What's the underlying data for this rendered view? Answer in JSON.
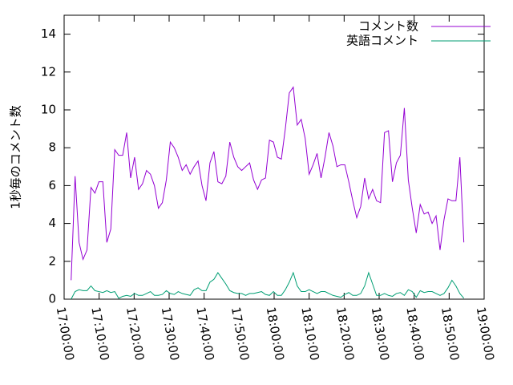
{
  "chart_data": {
    "type": "line",
    "y_label": "1秒毎のコメント数",
    "x": [
      "17:02:00",
      "17:03:08",
      "17:04:16",
      "17:05:24",
      "17:06:32",
      "17:07:40",
      "17:08:48",
      "17:09:56",
      "17:11:04",
      "17:12:12",
      "17:13:20",
      "17:14:28",
      "17:15:36",
      "17:16:44",
      "17:17:52",
      "17:19:00",
      "17:20:08",
      "17:21:16",
      "17:22:24",
      "17:23:32",
      "17:24:40",
      "17:25:48",
      "17:26:56",
      "17:28:04",
      "17:29:12",
      "17:30:20",
      "17:31:28",
      "17:32:36",
      "17:33:44",
      "17:34:52",
      "17:36:00",
      "17:37:08",
      "17:38:16",
      "17:39:24",
      "17:40:32",
      "17:41:40",
      "17:42:48",
      "17:43:56",
      "17:45:04",
      "17:46:12",
      "17:47:20",
      "17:48:28",
      "17:49:36",
      "17:50:44",
      "17:51:52",
      "17:53:00",
      "17:54:08",
      "17:55:16",
      "17:56:24",
      "17:57:32",
      "17:58:40",
      "17:59:48",
      "18:00:56",
      "18:02:04",
      "18:03:12",
      "18:04:20",
      "18:05:28",
      "18:06:36",
      "18:07:44",
      "18:08:52",
      "18:10:00",
      "18:11:08",
      "18:12:16",
      "18:13:24",
      "18:14:32",
      "18:15:40",
      "18:16:48",
      "18:17:56",
      "18:19:04",
      "18:20:12",
      "18:21:20",
      "18:22:28",
      "18:23:36",
      "18:24:44",
      "18:25:52",
      "18:27:00",
      "18:28:08",
      "18:29:16",
      "18:30:24",
      "18:31:32",
      "18:32:40",
      "18:33:48",
      "18:34:56",
      "18:36:04",
      "18:37:12",
      "18:38:20",
      "18:39:28",
      "18:40:36",
      "18:41:44",
      "18:42:52",
      "18:44:00",
      "18:45:08",
      "18:46:16",
      "18:47:24",
      "18:48:32",
      "18:49:40",
      "18:50:48",
      "18:51:56",
      "18:53:04",
      "18:54:12"
    ],
    "series": [
      {
        "name": "コメント数",
        "color": "#9400d3",
        "values": [
          1.0,
          6.5,
          3.0,
          2.1,
          2.6,
          5.9,
          5.6,
          6.2,
          6.2,
          3.0,
          3.7,
          7.9,
          7.6,
          7.6,
          8.8,
          6.4,
          7.5,
          5.8,
          6.1,
          6.8,
          6.6,
          6.0,
          4.8,
          5.1,
          6.3,
          8.3,
          8.0,
          7.5,
          6.8,
          7.1,
          6.6,
          7.0,
          7.3,
          6.0,
          5.2,
          7.2,
          7.8,
          6.2,
          6.1,
          6.5,
          8.3,
          7.5,
          7.0,
          6.8,
          7.0,
          7.2,
          6.3,
          5.8,
          6.3,
          6.4,
          8.4,
          8.3,
          7.5,
          7.4,
          9.0,
          10.9,
          11.2,
          9.2,
          9.5,
          8.5,
          6.6,
          7.1,
          7.7,
          6.4,
          7.5,
          8.8,
          8.1,
          7.0,
          7.1,
          7.1,
          6.2,
          5.2,
          4.3,
          4.9,
          6.4,
          5.3,
          5.8,
          5.2,
          5.1,
          8.8,
          8.9,
          6.2,
          7.2,
          7.6,
          10.1,
          6.3,
          4.8,
          3.5,
          5.0,
          4.5,
          4.6,
          4.0,
          4.4,
          2.6,
          4.2,
          5.3,
          5.2,
          5.2,
          7.5,
          3.0
        ]
      },
      {
        "name": "英語コメント",
        "color": "#009e73",
        "values": [
          0.0,
          0.4,
          0.5,
          0.45,
          0.45,
          0.7,
          0.45,
          0.4,
          0.35,
          0.45,
          0.35,
          0.4,
          0.05,
          0.15,
          0.2,
          0.15,
          0.3,
          0.2,
          0.2,
          0.3,
          0.4,
          0.2,
          0.2,
          0.25,
          0.45,
          0.3,
          0.25,
          0.4,
          0.3,
          0.25,
          0.2,
          0.5,
          0.6,
          0.45,
          0.45,
          0.9,
          1.05,
          1.4,
          1.1,
          0.8,
          0.45,
          0.35,
          0.3,
          0.3,
          0.2,
          0.3,
          0.3,
          0.35,
          0.4,
          0.25,
          0.2,
          0.4,
          0.2,
          0.2,
          0.5,
          0.9,
          1.4,
          0.7,
          0.4,
          0.4,
          0.5,
          0.4,
          0.3,
          0.4,
          0.4,
          0.3,
          0.2,
          0.15,
          0.1,
          0.25,
          0.35,
          0.2,
          0.2,
          0.3,
          0.7,
          1.4,
          0.8,
          0.2,
          0.2,
          0.3,
          0.2,
          0.15,
          0.3,
          0.35,
          0.2,
          0.5,
          0.4,
          0.1,
          0.45,
          0.35,
          0.4,
          0.4,
          0.3,
          0.2,
          0.3,
          0.6,
          1.0,
          0.7,
          0.3,
          0.05
        ]
      }
    ],
    "xlim": [
      "17:00:00",
      "19:00:00"
    ],
    "xticks": [
      "17:00:00",
      "17:10:00",
      "17:20:00",
      "17:30:00",
      "17:40:00",
      "17:50:00",
      "18:00:00",
      "18:10:00",
      "18:20:00",
      "18:30:00",
      "18:40:00",
      "18:50:00",
      "19:00:00"
    ],
    "ylim": [
      0,
      15
    ],
    "yticks": [
      0,
      2,
      4,
      6,
      8,
      10,
      12,
      14
    ],
    "legend": "top-right"
  }
}
